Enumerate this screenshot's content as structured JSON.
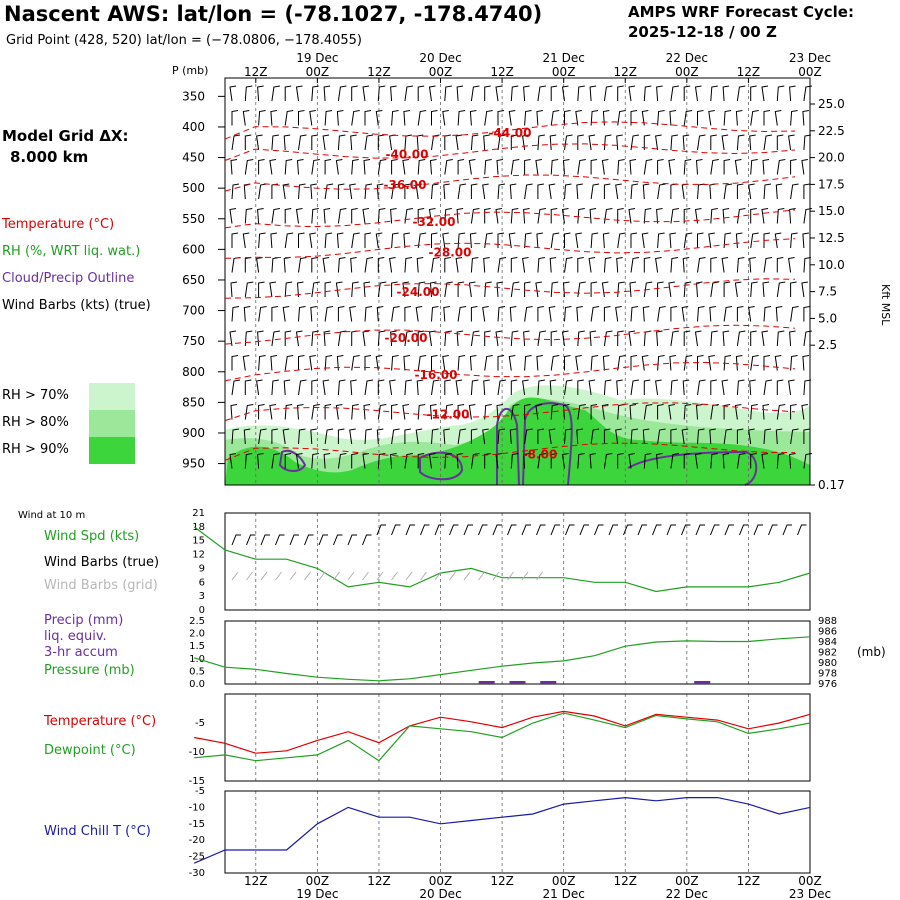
{
  "header": {
    "title": "Nascent AWS:  lat/lon = (-78.1027, -178.4740)",
    "subtitle": "Grid Point (428, 520) lat/lon = (−78.0806, −178.4055)",
    "cycle_label": "AMPS WRF Forecast Cycle:",
    "cycle_value": "2025-12-18 / 00  Z"
  },
  "left_legend": {
    "model_grid_label": "Model Grid ΔX:",
    "model_grid_value": "8.000 km",
    "temperature": "Temperature (°C)",
    "rh": "RH (%, WRT liq. wat.)",
    "cloud": "Cloud/Precip Outline",
    "wind_barbs": "Wind Barbs (kts) (true)",
    "rh70": "RH > 70%",
    "rh80": "RH > 80%",
    "rh90": "RH > 90%",
    "wind_at_10m": "Wind at 10 m",
    "wind_spd": "Wind Spd (kts)",
    "wind_barbs_true": "Wind Barbs (true)",
    "wind_barbs_grid": "Wind Barbs (grid)",
    "precip1": "Precip (mm)",
    "precip2": "liq. equiv.",
    "precip3": "3-hr accum",
    "pressure": "Pressure (mb)",
    "temp2": "Temperature (°C)",
    "dewpoint": "Dewpoint (°C)",
    "windchill": "Wind Chill T (°C)"
  },
  "colors": {
    "temperature": "#e00000",
    "rh": "#20a020",
    "cloud": "#6a2f9e",
    "wind_grid": "#b0b0b0",
    "windchill": "#1a1aa8",
    "rh70": "#cdf5cd",
    "rh80": "#9be89b",
    "rh90": "#3cd63c"
  },
  "time_axis": {
    "top_labels": [
      "12Z",
      "00Z",
      "12Z",
      "00Z",
      "12Z",
      "00Z",
      "12Z",
      "00Z",
      "12Z",
      "00Z"
    ],
    "date_labels": [
      "19 Dec",
      "20 Dec",
      "21 Dec",
      "22 Dec",
      "23 Dec"
    ],
    "bottom_labels": [
      "12Z",
      "00Z",
      "12Z",
      "00Z",
      "12Z",
      "00Z",
      "12Z",
      "00Z",
      "12Z",
      "00Z"
    ]
  },
  "chart_data": [
    {
      "type": "contour",
      "title": "Vertical profile time-height section",
      "ylabel": "P (mb)",
      "y2label": "Kft MSL",
      "p_ticks": [
        "350",
        "400",
        "450",
        "500",
        "550",
        "600",
        "650",
        "700",
        "750",
        "800",
        "850",
        "900",
        "950"
      ],
      "kft_ticks": [
        "25.0",
        "22.5",
        "20.0",
        "17.5",
        "15.0",
        "12.5",
        "10.0",
        "7.5",
        "5.0",
        "2.5",
        "0.17"
      ],
      "temperature_contours": [
        {
          "label": "-44.00",
          "p": 410
        },
        {
          "label": "-40.00",
          "p": 445
        },
        {
          "label": "-36.00",
          "p": 495
        },
        {
          "label": "-32.00",
          "p": 555
        },
        {
          "label": "-28.00",
          "p": 605
        },
        {
          "label": "-24.00",
          "p": 670
        },
        {
          "label": "-20.00",
          "p": 745
        },
        {
          "label": "-16.00",
          "p": 805
        },
        {
          "label": "-12.00",
          "p": 870
        },
        {
          "label": "-8.00",
          "p": 935
        }
      ]
    },
    {
      "type": "line",
      "title": "Wind Spd (kts)",
      "ylim": [
        0,
        21
      ],
      "y_ticks": [
        "21",
        "18",
        "15",
        "12",
        "9",
        "6",
        "3",
        "0"
      ],
      "x_hours": [
        0,
        6,
        12,
        18,
        24,
        30,
        36,
        42,
        48,
        54,
        60,
        66,
        72,
        78,
        84,
        90,
        96,
        102,
        108,
        114,
        120
      ],
      "series": [
        {
          "name": "Wind Spd",
          "values": [
            18,
            13,
            11,
            11,
            9,
            5,
            6,
            5,
            8,
            9,
            7,
            7,
            7,
            6,
            6,
            4,
            5,
            5,
            5,
            6,
            8
          ]
        }
      ]
    },
    {
      "type": "line",
      "title": "Precip / Pressure",
      "ylim": [
        0,
        2.5
      ],
      "y_ticks": [
        "2.5",
        "2.0",
        "1.5",
        "1.0",
        "0.5",
        "0.0"
      ],
      "y2lim": [
        976,
        988
      ],
      "y2_ticks": [
        "988",
        "986",
        "984",
        "982",
        "980",
        "978",
        "976"
      ],
      "y2label": "(mb)",
      "series": [
        {
          "name": "Pressure",
          "x": [
            0,
            6,
            12,
            18,
            24,
            30,
            36,
            42,
            48,
            54,
            60,
            66,
            72,
            78,
            84,
            90,
            96,
            102,
            108,
            114,
            120
          ],
          "values": [
            981.0,
            979.2,
            978.8,
            978.0,
            977.3,
            976.9,
            976.6,
            977.0,
            977.8,
            978.6,
            979.4,
            980.0,
            980.4,
            981.4,
            983.2,
            984.0,
            984.2,
            984.1,
            984.1,
            984.6,
            985.0
          ]
        },
        {
          "name": "Precip",
          "x": [
            57,
            63,
            69,
            99
          ],
          "values": [
            0.03,
            0.06,
            0.1,
            0.1
          ]
        }
      ]
    },
    {
      "type": "line",
      "title": "Temperature / Dewpoint",
      "ylim": [
        -15,
        0
      ],
      "y_ticks": [
        "-5",
        "-10",
        "-15"
      ],
      "x_hours": [
        0,
        6,
        12,
        18,
        24,
        30,
        36,
        42,
        48,
        54,
        60,
        66,
        72,
        78,
        84,
        90,
        96,
        102,
        108,
        114,
        120
      ],
      "series": [
        {
          "name": "Temperature",
          "values": [
            -7.5,
            -8.5,
            -10.2,
            -9.8,
            -8.0,
            -6.5,
            -8.4,
            -5.5,
            -4.0,
            -4.8,
            -5.8,
            -4.0,
            -3.0,
            -3.8,
            -5.5,
            -3.5,
            -4.0,
            -4.5,
            -6.0,
            -5.0,
            -3.5
          ]
        },
        {
          "name": "Dewpoint",
          "values": [
            -11.0,
            -10.5,
            -11.5,
            -11.0,
            -10.5,
            -8.0,
            -11.5,
            -5.5,
            -6.0,
            -6.5,
            -7.5,
            -5.0,
            -3.3,
            -4.5,
            -5.8,
            -3.7,
            -4.3,
            -4.8,
            -6.8,
            -6.0,
            -5.0
          ]
        }
      ]
    },
    {
      "type": "line",
      "title": "Wind Chill T (°C)",
      "ylim": [
        -30,
        -5
      ],
      "y_ticks": [
        "-5",
        "-10",
        "-15",
        "-20",
        "-25",
        "-30"
      ],
      "x_hours": [
        0,
        6,
        12,
        18,
        24,
        30,
        36,
        42,
        48,
        54,
        60,
        66,
        72,
        78,
        84,
        90,
        96,
        102,
        108,
        114,
        120
      ],
      "series": [
        {
          "name": "Wind Chill",
          "values": [
            -27,
            -23,
            -23,
            -23,
            -15,
            -10,
            -13,
            -13,
            -15,
            -14,
            -13,
            -12,
            -9,
            -8,
            -7,
            -8,
            -7,
            -7,
            -9,
            -12,
            -10
          ]
        }
      ]
    }
  ]
}
